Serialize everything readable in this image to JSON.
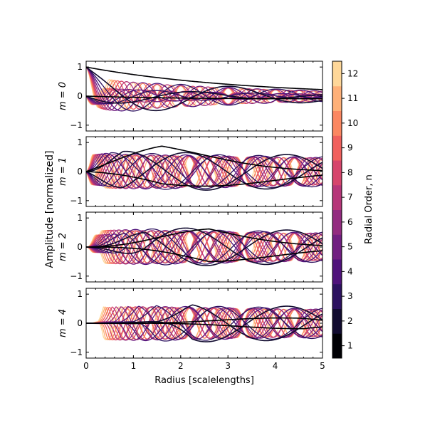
{
  "chart_data": {
    "type": "line",
    "ylabel": "Amplitude [normalized]",
    "xlabel": "Radius [scalelengths]",
    "xlim": [
      0,
      5
    ],
    "ylim": [
      -1.2,
      1.2
    ],
    "x_ticks": [
      0,
      1,
      2,
      3,
      4,
      5
    ],
    "y_ticks": [
      -1,
      0,
      1
    ],
    "panels": [
      {
        "label": "m = 0",
        "m": 0
      },
      {
        "label": "m = 1",
        "m": 1
      },
      {
        "label": "m = 2",
        "m": 2
      },
      {
        "label": "m = 4",
        "m": 4
      }
    ],
    "colorbar": {
      "label": "Radial Order, n",
      "ticks": [
        1,
        2,
        3,
        4,
        5,
        6,
        7,
        8,
        9,
        10,
        11,
        12
      ],
      "levels": 12,
      "colormap": "magma",
      "colors": [
        "#000004",
        "#110b2f",
        "#2c115f",
        "#4f127b",
        "#711f81",
        "#932b80",
        "#b63679",
        "#d6456c",
        "#f0605d",
        "#fb8761",
        "#feb078",
        "#fed799"
      ]
    },
    "series_description": "Each panel shows basis functions for radial orders n = 1..12 (cosine and sine parts), colored by n; amplitude normalized to 1."
  }
}
